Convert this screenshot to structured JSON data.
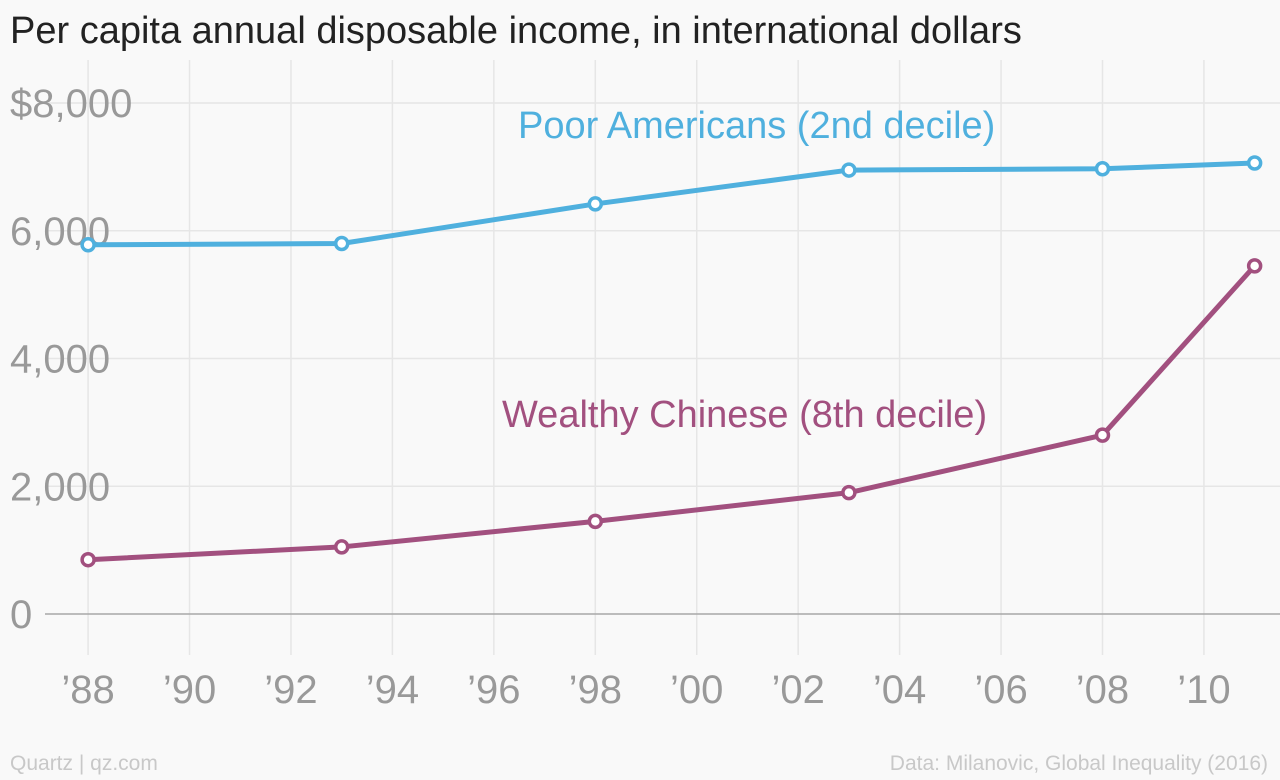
{
  "title": "Per capita annual disposable income, in international dollars",
  "footer": {
    "source_left": "Quartz | qz.com",
    "source_right": "Data: Milanovic, Global Inequality (2016)"
  },
  "colors": {
    "series_1": "#4fb0de",
    "series_2": "#a2507f",
    "grid": "#e6e6e6",
    "axis": "#a8a8a8",
    "tick_text": "#999999"
  },
  "chart_data": {
    "type": "line",
    "x_ticks": [
      1988,
      1990,
      1992,
      1994,
      1996,
      1998,
      2000,
      2002,
      2004,
      2006,
      2008,
      2010
    ],
    "x_tick_labels": [
      "’88",
      "’90",
      "’92",
      "’94",
      "’96",
      "’98",
      "’00",
      "’02",
      "’04",
      "’06",
      "’08",
      "’10"
    ],
    "y_ticks": [
      0,
      2000,
      4000,
      6000,
      8000
    ],
    "y_tick_labels": [
      "0",
      "2,000",
      "4,000",
      "6,000",
      "$8,000"
    ],
    "xlim": [
      1987.15,
      2011.5
    ],
    "ylim": [
      0,
      8000
    ],
    "grid": true,
    "series": [
      {
        "name": "Poor Americans (2nd decile)",
        "x": [
          1988,
          1993,
          1998,
          2003,
          2008,
          2011
        ],
        "values": [
          5780,
          5800,
          6420,
          6950,
          6970,
          7060
        ]
      },
      {
        "name": "Wealthy Chinese (8th decile)",
        "x": [
          1988,
          1993,
          1998,
          2003,
          2008,
          2011
        ],
        "values": [
          850,
          1050,
          1450,
          1900,
          2800,
          5450
        ]
      }
    ]
  }
}
